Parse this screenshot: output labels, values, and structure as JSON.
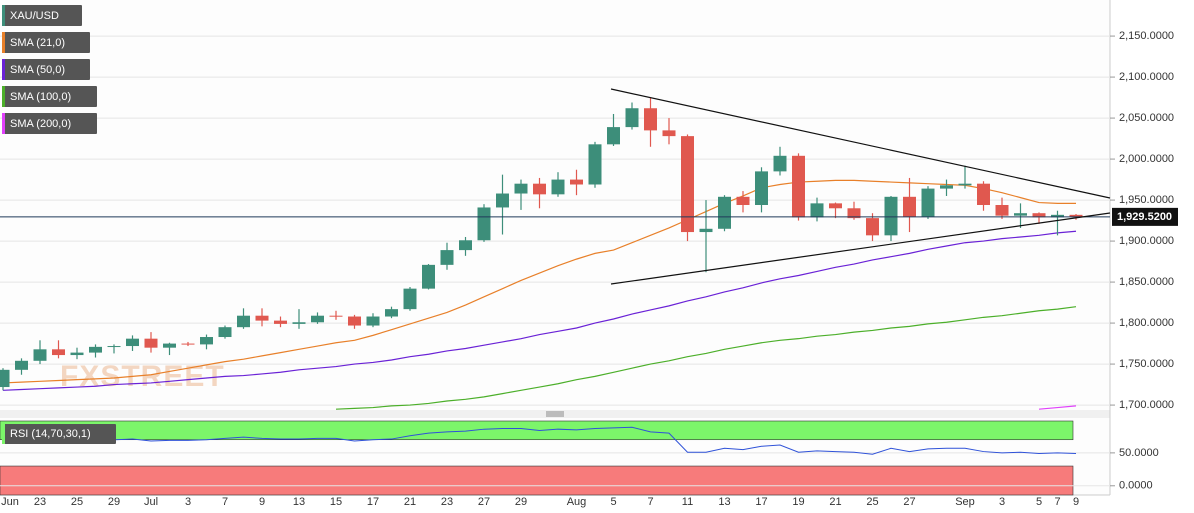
{
  "chart_data": [
    {
      "type": "candlestick",
      "name": "XAU/USD",
      "up_color": "#3d8e7a",
      "down_color": "#e0584f",
      "watermark": "FXSTREET",
      "categories": [
        "Jun",
        null,
        "23",
        null,
        "25",
        null,
        "29",
        null,
        "Jul",
        null,
        "3",
        null,
        "7",
        null,
        "9",
        null,
        "13",
        null,
        "15",
        null,
        "17",
        null,
        "21",
        null,
        "23",
        null,
        "27",
        null,
        "29",
        null,
        null,
        "Aug",
        null,
        "5",
        null,
        "7",
        null,
        "11",
        null,
        "13",
        null,
        "17",
        null,
        "19",
        null,
        "21",
        null,
        "25",
        null,
        "27",
        null,
        null,
        "Sep",
        null,
        "3",
        null,
        "5",
        "7",
        "9"
      ],
      "open": [
        1722,
        1743,
        1754,
        1768,
        1761,
        1764,
        1771,
        1772,
        1781,
        1770,
        1775,
        1774,
        1783,
        1795,
        1809,
        1803,
        1799,
        1801,
        1809,
        1808,
        1797,
        1808,
        1817,
        1842,
        1871,
        1889,
        1901,
        1941,
        1958,
        1970,
        1957,
        1975,
        1969,
        2018,
        2039,
        2062,
        2035,
        2028,
        1911,
        1915,
        1954,
        1944,
        1985,
        2004,
        1929,
        1946,
        1940,
        1928,
        1907,
        1954,
        1930,
        1964,
        1968,
        1970,
        1944,
        1931,
        1934,
        1929,
        1932
      ],
      "high": [
        1745,
        1757,
        1779,
        1779,
        1770,
        1774,
        1774,
        1785,
        1789,
        1776,
        1777,
        1786,
        1797,
        1818,
        1818,
        1808,
        1817,
        1813,
        1815,
        1810,
        1812,
        1820,
        1844,
        1872,
        1898,
        1905,
        1945,
        1981,
        1975,
        1977,
        1984,
        1987,
        2021,
        2055,
        2069,
        2075,
        2050,
        2030,
        1950,
        1956,
        1961,
        1990,
        2015,
        2007,
        1953,
        1947,
        1948,
        1934,
        1955,
        1977,
        1967,
        1975,
        1992,
        1973,
        1953,
        1946,
        1935,
        1937,
        1933
      ],
      "low": [
        1718,
        1737,
        1750,
        1757,
        1756,
        1758,
        1763,
        1766,
        1764,
        1761,
        1772,
        1768,
        1781,
        1793,
        1796,
        1795,
        1793,
        1799,
        1804,
        1793,
        1795,
        1806,
        1815,
        1841,
        1865,
        1882,
        1899,
        1908,
        1938,
        1940,
        1954,
        1956,
        1965,
        2016,
        2036,
        2015,
        2018,
        1900,
        1862,
        1912,
        1935,
        1935,
        1980,
        1925,
        1924,
        1928,
        1926,
        1900,
        1900,
        1911,
        1927,
        1955,
        1964,
        1937,
        1927,
        1916,
        1921,
        1907,
        1926
      ],
      "close": [
        1743,
        1754,
        1768,
        1761,
        1764,
        1771,
        1772,
        1781,
        1770,
        1775,
        1774,
        1783,
        1795,
        1809,
        1803,
        1799,
        1801,
        1809,
        1808,
        1797,
        1808,
        1817,
        1842,
        1871,
        1889,
        1901,
        1941,
        1958,
        1970,
        1957,
        1975,
        1969,
        2018,
        2039,
        2062,
        2035,
        2028,
        1911,
        1915,
        1954,
        1944,
        1985,
        2004,
        1929,
        1946,
        1940,
        1928,
        1907,
        1954,
        1930,
        1964,
        1968,
        1970,
        1944,
        1931,
        1934,
        1929,
        1932,
        1929.52
      ],
      "series": [
        {
          "name": "SMA (21,0)",
          "color": "#e8802a",
          "values": [
            1727,
            1728,
            1729,
            1730,
            1731,
            1732,
            1733,
            1735,
            1737,
            1741,
            1745,
            1749,
            1753,
            1756,
            1760,
            1764,
            1768,
            1772,
            1776,
            1779,
            1785,
            1792,
            1799,
            1806,
            1813,
            1822,
            1832,
            1842,
            1852,
            1861,
            1870,
            1878,
            1885,
            1889,
            1898,
            1907,
            1916,
            1926,
            1936,
            1946,
            1955,
            1965,
            1969,
            1972,
            1973,
            1974,
            1974,
            1973,
            1972,
            1971,
            1970,
            1969,
            1968,
            1964,
            1959,
            1953,
            1947,
            1946,
            1946
          ]
        },
        {
          "name": "SMA (50,0)",
          "color": "#6a22d6",
          "values": [
            1718,
            1719,
            1720,
            1721,
            1722,
            1723,
            1725,
            1726,
            1727,
            1729,
            1731,
            1733,
            1735,
            1736,
            1738,
            1740,
            1743,
            1745,
            1747,
            1750,
            1752,
            1755,
            1759,
            1762,
            1766,
            1769,
            1773,
            1777,
            1781,
            1786,
            1790,
            1794,
            1800,
            1805,
            1811,
            1816,
            1821,
            1827,
            1832,
            1838,
            1843,
            1849,
            1854,
            1858,
            1863,
            1868,
            1872,
            1877,
            1881,
            1885,
            1890,
            1894,
            1898,
            1900,
            1903,
            1905,
            1907,
            1910,
            1912
          ]
        },
        {
          "name": "SMA (100,0)",
          "color": "#4caf2a",
          "values": [
            null,
            null,
            null,
            null,
            null,
            null,
            null,
            null,
            null,
            null,
            null,
            null,
            null,
            null,
            null,
            null,
            null,
            null,
            1695,
            1696,
            1697,
            1699,
            1700,
            1702,
            1705,
            1707,
            1710,
            1714,
            1718,
            1722,
            1726,
            1731,
            1735,
            1740,
            1745,
            1750,
            1754,
            1759,
            1763,
            1768,
            1772,
            1776,
            1779,
            1781,
            1784,
            1786,
            1789,
            1791,
            1794,
            1796,
            1799,
            1801,
            1804,
            1807,
            1809,
            1812,
            1815,
            1817,
            1820
          ]
        },
        {
          "name": "SMA (200,0)",
          "color": "#e040fb",
          "values": [
            null,
            null,
            null,
            null,
            null,
            null,
            null,
            null,
            null,
            null,
            null,
            null,
            null,
            null,
            null,
            null,
            null,
            null,
            null,
            null,
            null,
            null,
            null,
            null,
            null,
            null,
            null,
            null,
            null,
            null,
            null,
            null,
            null,
            null,
            null,
            null,
            null,
            null,
            null,
            null,
            null,
            null,
            null,
            null,
            null,
            null,
            null,
            null,
            null,
            null,
            null,
            null,
            null,
            null,
            null,
            null,
            1695,
            1697,
            1699
          ]
        }
      ],
      "last_price": {
        "value": 1929.52,
        "label": "1,929.5200"
      },
      "ylim": [
        1694,
        2194
      ],
      "yticks": [
        {
          "value": 1700,
          "label": "1,700.0000"
        },
        {
          "value": 1750,
          "label": "1,750.0000"
        },
        {
          "value": 1800,
          "label": "1,800.0000"
        },
        {
          "value": 1850,
          "label": "1,850.0000"
        },
        {
          "value": 1900,
          "label": "1,900.0000"
        },
        {
          "value": 1950,
          "label": "1,950.0000"
        },
        {
          "value": 2000,
          "label": "2,000.0000"
        },
        {
          "value": 2050,
          "label": "2,050.0000"
        },
        {
          "value": 2100,
          "label": "2,100.0000"
        },
        {
          "value": 2150,
          "label": "2,150.0000"
        }
      ],
      "grid": true
    },
    {
      "type": "line",
      "name": "RSI (14,70,30,1)",
      "color": "#2f52d8",
      "values": [
        68,
        70,
        71,
        69,
        70,
        70,
        70,
        71,
        68,
        69,
        69,
        70,
        72,
        74,
        72,
        71,
        71,
        72,
        72,
        68,
        70,
        71,
        76,
        80,
        82,
        83,
        86,
        87,
        87,
        84,
        86,
        85,
        87,
        88,
        89,
        82,
        80,
        51,
        51,
        57,
        55,
        60,
        62,
        51,
        53,
        52,
        51,
        48,
        57,
        52,
        56,
        57,
        57,
        52,
        50,
        51,
        49,
        50,
        49
      ],
      "overbought": 70,
      "oversold": 30,
      "overbought_color": "#7cf56a",
      "oversold_color": "#f77b7b",
      "ylim": [
        -14,
        103
      ],
      "yticks": [
        {
          "value": 0,
          "label": "0.0000"
        },
        {
          "value": 50,
          "label": "50.0000"
        }
      ],
      "grid": true
    }
  ]
}
